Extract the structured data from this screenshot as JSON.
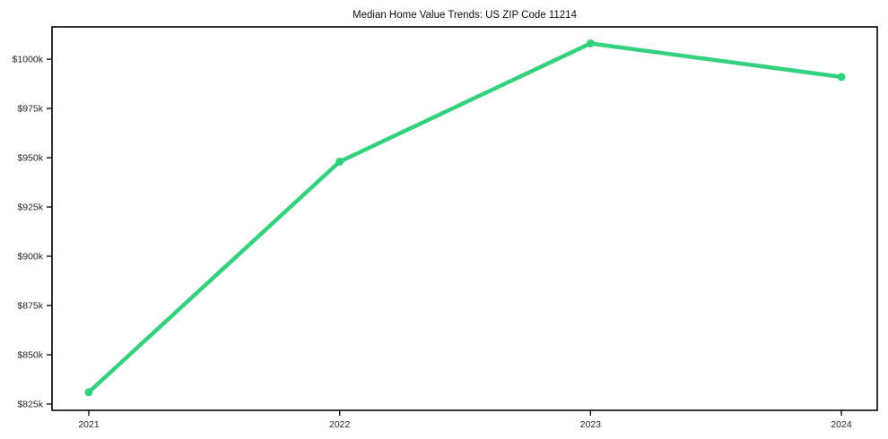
{
  "chart": {
    "title": "Median Home Value Trends: US ZIP Code 11214"
  },
  "chart_data": {
    "type": "line",
    "title": "Median Home Value Trends: US ZIP Code 11214",
    "categories": [
      "2021",
      "2022",
      "2023",
      "2024"
    ],
    "series": [
      {
        "name": "Median Home Value",
        "values": [
          831,
          948,
          1008,
          991
        ],
        "unit": "$k",
        "color": "#33d17d",
        "marker": "circle"
      }
    ],
    "xlabel": "",
    "ylabel": "",
    "ylim": [
      821.8,
      1016.4
    ],
    "yticks": [
      825,
      850,
      875,
      900,
      925,
      950,
      975,
      1000
    ],
    "ytick_labels": [
      "$825k",
      "$850k",
      "$875k",
      "$900k",
      "$925k",
      "$950k",
      "$975k",
      "$1000k"
    ],
    "xtick_labels": [
      "2021",
      "2022",
      "2023",
      "2024"
    ],
    "grid": false,
    "legend_position": "none",
    "plot_background": "#ffffff",
    "axis_color": "#000000",
    "tick_label_color": "#262626",
    "title_color": "#0d0d0d"
  }
}
